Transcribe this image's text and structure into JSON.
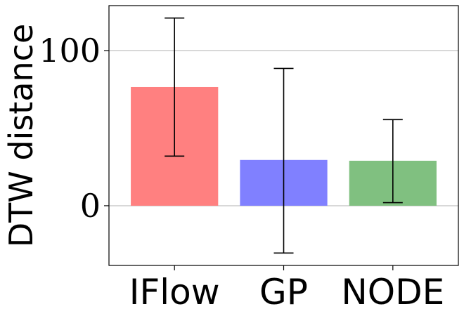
{
  "chart_data": {
    "type": "bar",
    "categories": [
      "IFlow",
      "GP",
      "NODE"
    ],
    "values": [
      76.5,
      29.5,
      29
    ],
    "error_low": [
      32,
      -30.5,
      2
    ],
    "error_high": [
      121,
      88.5,
      55.5
    ],
    "colors": [
      "#ff8080",
      "#8080ff",
      "#80c080"
    ],
    "title": "",
    "xlabel": "",
    "ylabel": "DTW distance",
    "ylim": [
      -38.5,
      129
    ],
    "yticks": [
      0,
      100
    ],
    "ytick_labels": [
      "0",
      "100"
    ],
    "grid": "horizontal"
  }
}
